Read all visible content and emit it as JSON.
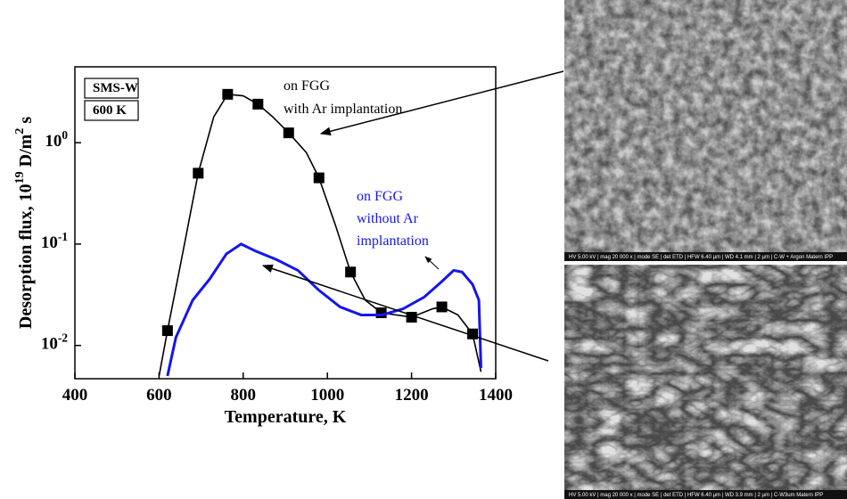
{
  "chart_data": {
    "type": "line",
    "xlabel": "Temperature, K",
    "ylabel": "Desorption flux, 10^19 D/m^2 s",
    "xlim": [
      400,
      1400
    ],
    "xticks": [
      400,
      600,
      800,
      1000,
      1200,
      1400
    ],
    "ylim": [
      0.0047,
      5.6
    ],
    "log_y": true,
    "yticks": [
      {
        "value": 0.01,
        "label": "10^-2"
      },
      {
        "value": 0.1,
        "label": "10^-1"
      },
      {
        "value": 1,
        "label": "10^0"
      }
    ],
    "series": [
      {
        "color": "#000000",
        "marker": false,
        "x": [
          600,
          620,
          650,
          693,
          730,
          763,
          800,
          835,
          870,
          908,
          950,
          980,
          1020,
          1055,
          1090,
          1128,
          1200,
          1250,
          1272,
          1310,
          1345,
          1365
        ],
        "values": [
          0.005,
          0.014,
          0.06,
          0.5,
          1.8,
          3.0,
          2.9,
          2.4,
          1.8,
          1.25,
          0.8,
          0.45,
          0.15,
          0.053,
          0.028,
          0.021,
          0.019,
          0.023,
          0.024,
          0.02,
          0.013,
          0.0055
        ]
      },
      {
        "color": "#000000",
        "marker": true,
        "x": [
          620,
          693,
          763,
          835,
          908,
          980,
          1055,
          1128,
          1200,
          1272,
          1345
        ],
        "values": [
          0.014,
          0.5,
          3.0,
          2.4,
          1.25,
          0.45,
          0.053,
          0.021,
          0.019,
          0.024,
          0.013
        ]
      },
      {
        "color": "#1515ee",
        "marker": false,
        "x": [
          620,
          640,
          680,
          720,
          760,
          795,
          830,
          880,
          930,
          980,
          1030,
          1080,
          1130,
          1180,
          1230,
          1270,
          1300,
          1320,
          1345,
          1360,
          1365
        ],
        "values": [
          0.005,
          0.012,
          0.028,
          0.045,
          0.08,
          0.1,
          0.085,
          0.07,
          0.055,
          0.035,
          0.024,
          0.02,
          0.02,
          0.023,
          0.03,
          0.042,
          0.055,
          0.053,
          0.04,
          0.028,
          0.006
        ]
      }
    ],
    "boxes": [
      "SMS-W",
      "600 K"
    ],
    "annotation_ar": [
      "on FGG",
      "with Ar implantation"
    ],
    "annotation_no_ar": [
      "on FGG",
      "without Ar",
      "implantation"
    ],
    "sem_top": "HV 5.00 kV | mag 20 000 x | mode SE | det ETD | HFW 6.40 µm | WD 4.1 mm | 2 µm | C-W + Argon Matern IPP",
    "sem_bottom": "HV 5.00 kV | mag 20 000 x | mode SE | det ETD | HFW 6.40 µm | WD 3.9 mm | 2 µm | C-W3um Matern IPP"
  }
}
